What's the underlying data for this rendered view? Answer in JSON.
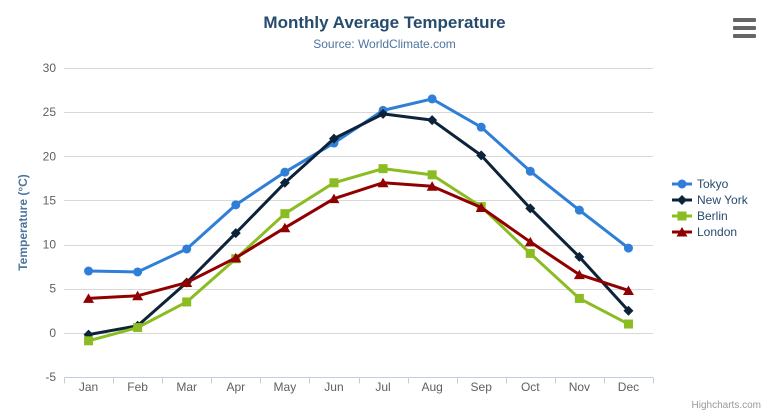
{
  "header": {
    "title": "Monthly Average Temperature",
    "subtitle": "Source: WorldClimate.com"
  },
  "export_menu": {
    "icon": "hamburger-icon"
  },
  "credits": {
    "label": "Highcharts.com"
  },
  "chart_data": {
    "type": "line",
    "title": "Monthly Average Temperature",
    "subtitle": "Source: WorldClimate.com",
    "xlabel": "",
    "ylabel": "Temperature (°C)",
    "categories": [
      "Jan",
      "Feb",
      "Mar",
      "Apr",
      "May",
      "Jun",
      "Jul",
      "Aug",
      "Sep",
      "Oct",
      "Nov",
      "Dec"
    ],
    "series": [
      {
        "name": "Tokyo",
        "color": "#2f7ed8",
        "marker": "circle",
        "values": [
          7.0,
          6.9,
          9.5,
          14.5,
          18.2,
          21.5,
          25.2,
          26.5,
          23.3,
          18.3,
          13.9,
          9.6
        ]
      },
      {
        "name": "New York",
        "color": "#0d233a",
        "marker": "diamond",
        "values": [
          -0.2,
          0.8,
          5.7,
          11.3,
          17.0,
          22.0,
          24.8,
          24.1,
          20.1,
          14.1,
          8.6,
          2.5
        ]
      },
      {
        "name": "Berlin",
        "color": "#8bbc21",
        "marker": "square",
        "values": [
          -0.9,
          0.6,
          3.5,
          8.4,
          13.5,
          17.0,
          18.6,
          17.9,
          14.3,
          9.0,
          3.9,
          1.0
        ]
      },
      {
        "name": "London",
        "color": "#910000",
        "marker": "triangle",
        "values": [
          3.9,
          4.2,
          5.7,
          8.5,
          11.9,
          15.2,
          17.0,
          16.6,
          14.2,
          10.3,
          6.6,
          4.8
        ]
      }
    ],
    "ylim": [
      -5,
      30
    ],
    "ytick_step": 5,
    "grid": true,
    "legend_position": "right",
    "colors": {
      "grid_line": "#d8d8d8",
      "axis_line": "#c0d0e0",
      "title_text": "#274b6d",
      "subtitle_text": "#4d759e",
      "axis_label": "#606060",
      "axis_title": "#4d759e",
      "legend_text": "#274b6d",
      "credits_text": "#999999",
      "export_icon": "#666666"
    }
  }
}
